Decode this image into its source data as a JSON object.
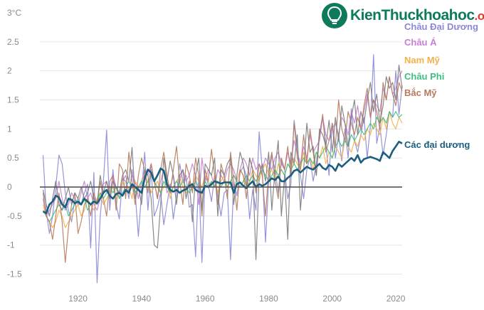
{
  "logo": {
    "name": "KienThuc",
    "suffix": "khoahoc",
    "tld": ".org"
  },
  "chart_data": {
    "type": "line",
    "title": "",
    "xlabel": "",
    "ylabel": "",
    "xlim": [
      1908,
      2022
    ],
    "ylim": [
      -1.75,
      3
    ],
    "y_unit_label": "3°C",
    "xticks": [
      1920,
      1940,
      1960,
      1980,
      2000,
      2020
    ],
    "yticks": [
      -1.5,
      -1,
      -0.5,
      0,
      0.5,
      1,
      1.5,
      2,
      2.5
    ],
    "ytick_labels": [
      "-1.5",
      "-1",
      "-0.5",
      "0",
      "0.5",
      "1",
      "1.5",
      "2",
      "2.5"
    ],
    "grid": true,
    "legend": "right, labels stacked top-right",
    "series": [
      {
        "name": "Châu Đại Dương",
        "color": "#8a88d8",
        "width": 1.2,
        "values": [
          0.55,
          -0.4,
          -0.8,
          -0.5,
          0,
          0.55,
          0.4,
          -0.1,
          -0.4,
          -0.6,
          -0.2,
          -0.3,
          -0.3,
          -0.1,
          0.05,
          -1.05,
          0.25,
          -1.65,
          -0.5,
          0.1,
          0.98,
          -0.4,
          0.3,
          -0.3,
          -0.55,
          0.15,
          0.1,
          -0.2,
          0.3,
          -0.1,
          -0.85,
          -0.1,
          0.6,
          -0.4,
          0.3,
          -0.5,
          -0.35,
          -0.1,
          -0.65,
          -0.3,
          0.05,
          -0.55,
          -0.15,
          0.4,
          0.1,
          0.2,
          -0.35,
          -0.3,
          -1.2,
          0.2,
          -1.3,
          0.2,
          0.05,
          -0.25,
          0.2,
          -0.15,
          -0.5,
          -0.1,
          -0.05,
          -1.25,
          0.1,
          -0.15,
          0.25,
          0.35,
          0.2,
          -0.55,
          -0.05,
          -0.4,
          0.95,
          0.3,
          -0.95,
          0.1,
          0.55,
          0.3,
          -0.1,
          0.45,
          0.3,
          -0.2,
          0.05,
          1.15,
          0.7,
          0.2,
          -0.2,
          0.3,
          0.5,
          0.1,
          0.4,
          0.9,
          1.2,
          0.75,
          0.2,
          1.1,
          0.5,
          0.9,
          0.45,
          1.0,
          0.5,
          1.35,
          0.8,
          0.6,
          0.9,
          1.2,
          0.5,
          1.05,
          2.28,
          0.75,
          1.05,
          0.55,
          0.9,
          1.3,
          1.2,
          2.0,
          1.25,
          1.75
        ]
      },
      {
        "name": "Châu Á",
        "color": "#c77fd6",
        "width": 1.2,
        "values": [
          -0.2,
          -0.5,
          -0.4,
          -0.3,
          -0.2,
          0.1,
          -0.2,
          -0.4,
          -0.3,
          -0.1,
          -0.2,
          -0.3,
          -0.1,
          0.1,
          -0.2,
          -0.1,
          -0.3,
          -0.4,
          -0.2,
          0.05,
          0.1,
          -0.1,
          0.2,
          0,
          -0.2,
          0.1,
          0.2,
          -0.1,
          0.2,
          0.1,
          -0.2,
          0.1,
          0.3,
          0.2,
          0.4,
          0.1,
          -0.2,
          0.1,
          0.3,
          -0.1,
          0,
          0.2,
          -0.1,
          0.1,
          0.3,
          0.1,
          0.2,
          0.4,
          0.2,
          -0.3,
          0.5,
          0.1,
          0.3,
          0.2,
          0,
          0.3,
          0.2,
          0.1,
          0.3,
          0.4,
          0.3,
          0.1,
          0.3,
          0.5,
          0.4,
          0.2,
          0.5,
          0.3,
          0.4,
          0.3,
          0.5,
          0.4,
          0.3,
          0.5,
          0.6,
          0.4,
          0.3,
          0.6,
          0.4,
          0.8,
          0.6,
          0.4,
          0.7,
          0.5,
          0.9,
          0.6,
          0.7,
          0.8,
          1.2,
          0.9,
          0.8,
          1.0,
          1.1,
          0.9,
          1.2,
          1.1,
          0.9,
          1.3,
          1.1,
          1.4,
          1.0,
          1.3,
          1.6,
          1.2,
          1.5,
          1.4,
          1.3,
          1.7,
          1.5,
          1.9,
          1.6,
          1.7,
          1.9,
          2.0
        ]
      },
      {
        "name": "Nam Mỹ",
        "color": "#f5b04a",
        "width": 1.2,
        "values": [
          -0.3,
          -0.5,
          -0.6,
          -0.7,
          -0.6,
          -0.4,
          -0.5,
          -0.7,
          -0.6,
          -0.5,
          -0.4,
          -0.3,
          -0.5,
          -0.4,
          -0.2,
          -0.3,
          -0.4,
          -0.2,
          -0.1,
          -0.3,
          -0.2,
          -0.1,
          0,
          -0.2,
          -0.1,
          0.1,
          -0.1,
          0,
          -0.2,
          0.1,
          0,
          0.1,
          0.2,
          0.1,
          -0.1,
          0,
          0.1,
          -0.1,
          0,
          0.1,
          -0.2,
          0,
          0.1,
          0.2,
          0,
          -0.1,
          0.1,
          0,
          0.2,
          0.1,
          0,
          0.2,
          0.1,
          0,
          0.2,
          -0.1,
          0.1,
          0.2,
          0,
          0.1,
          0.2,
          0.1,
          0.3,
          0.2,
          0,
          0.1,
          0.3,
          0.2,
          0.1,
          0.3,
          0.4,
          0.2,
          0.3,
          0.1,
          0.4,
          0.3,
          0.2,
          0.4,
          0.3,
          0.5,
          0.4,
          0.3,
          0.6,
          0.4,
          0.5,
          0.3,
          0.6,
          0.5,
          0.7,
          0.4,
          0.6,
          0.5,
          0.7,
          0.6,
          0.5,
          0.8,
          0.7,
          0.6,
          0.8,
          0.7,
          0.9,
          0.8,
          1.0,
          0.9,
          1.1,
          1.0,
          0.9,
          1.2,
          1.0,
          1.3,
          1.1,
          1.0,
          1.2,
          1.1
        ]
      },
      {
        "name": "Châu Phi",
        "color": "#3fbf7f",
        "width": 1.2,
        "values": [
          -0.4,
          -0.5,
          -0.6,
          -0.5,
          -0.4,
          -0.3,
          -0.4,
          -0.3,
          -0.5,
          -0.4,
          -0.3,
          -0.2,
          -0.3,
          -0.2,
          -0.4,
          -0.3,
          -0.2,
          -0.3,
          -0.1,
          -0.2,
          -0.1,
          0,
          -0.1,
          0,
          -0.2,
          -0.1,
          0,
          0.1,
          0,
          -0.1,
          0,
          0.1,
          0,
          0.1,
          0.2,
          0.1,
          0,
          -0.1,
          0.1,
          0,
          -0.1,
          0,
          0.1,
          0,
          0.1,
          0,
          -0.1,
          0,
          0.1,
          0,
          -0.1,
          0.1,
          0,
          0.1,
          0,
          0.1,
          0,
          0.1,
          0,
          0.1,
          0.2,
          0.1,
          0,
          0.1,
          0.2,
          0.1,
          0.2,
          0.1,
          0.2,
          0.3,
          0.2,
          0.1,
          0.2,
          0.3,
          0.2,
          0.3,
          0.2,
          0.4,
          0.3,
          0.4,
          0.3,
          0.4,
          0.5,
          0.4,
          0.5,
          0.4,
          0.6,
          0.5,
          0.6,
          0.7,
          0.6,
          0.5,
          0.7,
          0.8,
          0.7,
          0.8,
          0.7,
          0.9,
          0.8,
          0.9,
          1.0,
          0.9,
          1.0,
          1.1,
          1.0,
          1.2,
          1.1,
          1.2,
          1.1,
          1.3,
          1.2,
          1.3,
          1.2,
          1.25
        ]
      },
      {
        "name": "Bắc Mỹ",
        "color": "#b87a5a",
        "width": 1.2,
        "values": [
          -0.1,
          -0.5,
          -0.6,
          -0.9,
          -0.5,
          -0.1,
          -0.6,
          -1.3,
          -0.7,
          -0.3,
          -0.1,
          -0.8,
          -0.6,
          -0.3,
          -0.2,
          -0.5,
          -0.1,
          -0.3,
          0.1,
          -0.2,
          -0.5,
          0.1,
          0.2,
          -0.4,
          0.4,
          0.3,
          -0.2,
          0.6,
          0.1,
          -0.3,
          0.2,
          0.5,
          0.3,
          -0.1,
          0.4,
          0.1,
          -0.2,
          0.3,
          0.6,
          0.2,
          -0.1,
          0.3,
          0.7,
          0.1,
          -0.3,
          0.4,
          0.2,
          -0.1,
          0.5,
          0.2,
          -0.5,
          0.3,
          0.1,
          0.65,
          0.2,
          -0.3,
          0.4,
          0.2,
          -0.2,
          0.6,
          0.1,
          -0.4,
          0.3,
          0.2,
          -0.2,
          0.5,
          0.3,
          -0.1,
          0.4,
          0.2,
          -0.5,
          0.3,
          0.6,
          0.1,
          -0.2,
          0.5,
          0.3,
          0.7,
          0.2,
          1.1,
          0.5,
          0.3,
          0.9,
          0.4,
          1.0,
          0.6,
          0.2,
          0.9,
          1.25,
          0.6,
          0.8,
          1.1,
          0.7,
          1.5,
          1.0,
          0.8,
          1.3,
          1.1,
          0.9,
          1.2,
          1.0,
          1.4,
          1.7,
          1.2,
          1.5,
          1.3,
          1.0,
          1.8,
          1.5,
          1.9,
          1.6,
          1.4,
          1.8,
          1.65
        ]
      },
      {
        "name": "",
        "color": "#7c7c7c",
        "width": 1.2,
        "values": [
          -0.05,
          -0.3,
          -0.5,
          -0.2,
          0.1,
          -0.3,
          -0.4,
          -0.2,
          0,
          -0.3,
          -0.1,
          -0.2,
          0,
          -0.2,
          -0.1,
          0.1,
          -0.2,
          -0.3,
          0.2,
          -0.1,
          0.1,
          -0.2,
          0.1,
          0,
          -0.1,
          0.2,
          0.3,
          0.1,
          0.68,
          -0.2,
          0,
          -0.3,
          0.3,
          0.2,
          -0.2,
          -1.0,
          -1.05,
          -0.3,
          0.5,
          0.1,
          0.45,
          0.2,
          -0.3,
          0.2,
          0.3,
          -0.2,
          0.1,
          -0.6,
          0.2,
          0.5,
          -0.4,
          0.4,
          0.3,
          0.2,
          0.5,
          -0.5,
          0.3,
          0.2,
          0.4,
          0.5,
          -0.3,
          0.2,
          0.6,
          0.4,
          0,
          0.5,
          0.3,
          -1.25,
          0.2,
          0.4,
          0.1,
          0.6,
          -0.4,
          0.3,
          0.8,
          -0.5,
          0.2,
          -0.9,
          0.6,
          0.4,
          0.9,
          -0.4,
          0.3,
          1.1,
          0.6,
          0.7,
          0.2,
          1.0,
          0.9,
          0.7,
          1.15,
          0.6,
          1.2,
          0.8,
          1.4,
          1.1,
          0.7,
          1.2,
          1.5,
          0.9,
          1.3,
          1.1,
          1.5,
          1.8,
          1.3,
          1.6,
          1.1,
          1.4,
          1.9,
          1.7,
          1.8,
          1.5,
          2.1,
          1.7
        ]
      },
      {
        "name": "Các đại dương",
        "color": "#1b5e80",
        "width": 2.6,
        "values": [
          -0.42,
          -0.45,
          -0.3,
          -0.25,
          -0.15,
          -0.18,
          -0.3,
          -0.35,
          -0.2,
          -0.22,
          -0.28,
          -0.25,
          -0.3,
          -0.2,
          -0.25,
          -0.3,
          -0.25,
          -0.28,
          -0.2,
          -0.1,
          -0.05,
          -0.15,
          -0.2,
          -0.12,
          -0.1,
          -0.15,
          -0.05,
          -0.1,
          0.05,
          0,
          -0.05,
          -0.1,
          0.15,
          0.3,
          0.25,
          0.1,
          0.2,
          0.32,
          0.28,
          0.05,
          -0.05,
          -0.08,
          -0.05,
          -0.1,
          -0.06,
          -0.04,
          0.02,
          0.05,
          -0.05,
          -0.08,
          -0.1,
          0.02,
          0,
          0.05,
          0.1,
          0.08,
          0.06,
          0.08,
          0.08,
          0.08,
          -0.1,
          0.05,
          0.08,
          0.02,
          -0.02,
          0.05,
          0.1,
          0,
          0.05,
          0.02,
          0.05,
          0.1,
          0.15,
          0.12,
          0.18,
          0.1,
          0.1,
          0.16,
          0.2,
          0.28,
          0.3,
          0.25,
          0.3,
          0.35,
          0.32,
          0.3,
          0.35,
          0.4,
          0.33,
          0.3,
          0.38,
          0.35,
          0.28,
          0.4,
          0.35,
          0.4,
          0.45,
          0.5,
          0.45,
          0.55,
          0.42,
          0.48,
          0.5,
          0.52,
          0.5,
          0.48,
          0.45,
          0.6,
          0.55,
          0.5,
          0.62,
          0.7,
          0.78,
          0.75
        ]
      }
    ],
    "x_start": 1909,
    "legend_entries": [
      {
        "label": "Châu Đại Dương",
        "color": "#8a88d8"
      },
      {
        "label": "Châu Á",
        "color": "#c77fd6"
      },
      {
        "label": "Nam Mỹ",
        "color": "#f5b04a"
      },
      {
        "label": "Châu Phi",
        "color": "#3fbf7f"
      },
      {
        "label": "Bắc Mỹ",
        "color": "#b87a5a"
      },
      {
        "label": "Các đại dương",
        "color": "#1b5e80"
      }
    ]
  }
}
